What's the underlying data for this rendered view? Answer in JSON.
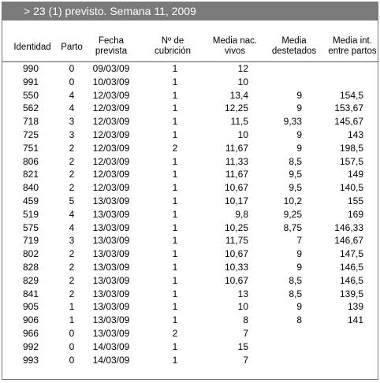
{
  "header": {
    "title": "> 23 (1) previsto. Semana 11, 2009"
  },
  "columns": [
    "Identidad",
    "Parto",
    "Fecha\nprevista",
    "Nº de\ncubrición",
    "Media nac.\nvivos",
    "Media\ndestetados",
    "Media int.\nentre partos"
  ],
  "rows": [
    [
      "990",
      "0",
      "09/03/09",
      "1",
      "12",
      "",
      ""
    ],
    [
      "991",
      "0",
      "10/03/09",
      "1",
      "10",
      "",
      ""
    ],
    [
      "550",
      "4",
      "12/03/09",
      "1",
      "13,4",
      "9",
      "154,5"
    ],
    [
      "562",
      "4",
      "12/03/09",
      "1",
      "12,25",
      "9",
      "153,67"
    ],
    [
      "718",
      "3",
      "12/03/09",
      "1",
      "11,5",
      "9,33",
      "145,67"
    ],
    [
      "725",
      "3",
      "12/03/09",
      "1",
      "10",
      "9",
      "143"
    ],
    [
      "751",
      "2",
      "12/03/09",
      "2",
      "11,67",
      "9",
      "198,5"
    ],
    [
      "806",
      "2",
      "12/03/09",
      "1",
      "11,33",
      "8,5",
      "157,5"
    ],
    [
      "821",
      "2",
      "12/03/09",
      "1",
      "11,67",
      "9,5",
      "149"
    ],
    [
      "840",
      "2",
      "12/03/09",
      "1",
      "10,67",
      "9,5",
      "140,5"
    ],
    [
      "459",
      "5",
      "13/03/09",
      "1",
      "10,17",
      "10,2",
      "155"
    ],
    [
      "519",
      "4",
      "13/03/09",
      "1",
      "9,8",
      "9,25",
      "169"
    ],
    [
      "575",
      "4",
      "13/03/09",
      "1",
      "10,25",
      "8,75",
      "146,33"
    ],
    [
      "719",
      "3",
      "13/03/09",
      "1",
      "11,75",
      "7",
      "146,67"
    ],
    [
      "802",
      "2",
      "13/03/09",
      "1",
      "10,67",
      "9",
      "147,5"
    ],
    [
      "828",
      "2",
      "13/03/09",
      "1",
      "10,33",
      "9",
      "146,5"
    ],
    [
      "829",
      "2",
      "13/03/09",
      "1",
      "10,67",
      "8,5",
      "146,5"
    ],
    [
      "841",
      "2",
      "13/03/09",
      "1",
      "13",
      "8,5",
      "139,5"
    ],
    [
      "905",
      "1",
      "13/03/09",
      "1",
      "10",
      "9",
      "139"
    ],
    [
      "906",
      "1",
      "13/03/09",
      "1",
      "8",
      "8",
      "141"
    ],
    [
      "966",
      "0",
      "13/03/09",
      "2",
      "7",
      "",
      ""
    ],
    [
      "992",
      "0",
      "14/03/09",
      "1",
      "15",
      "",
      ""
    ],
    [
      "993",
      "0",
      "14/03/09",
      "1",
      "7",
      "",
      ""
    ]
  ]
}
